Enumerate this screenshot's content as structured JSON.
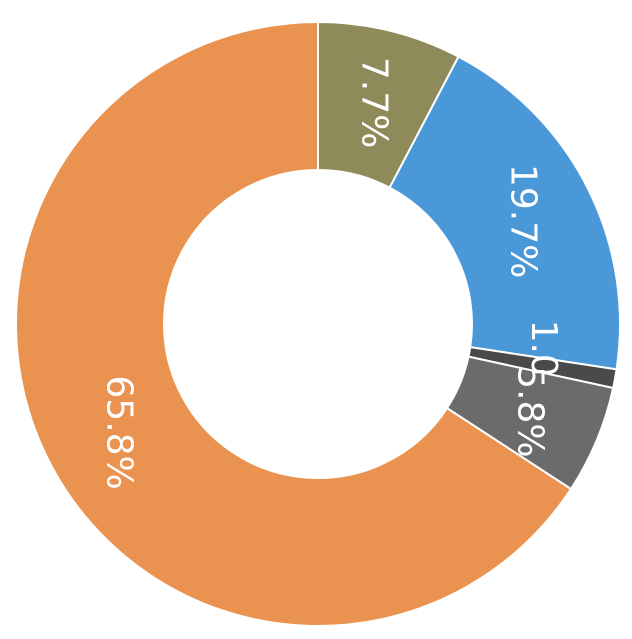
{
  "chart_data": {
    "type": "pie",
    "variant": "donut",
    "start": "top",
    "direction": "clockwise",
    "label_rotation": "clockwise-90",
    "slices": [
      {
        "label": "7.7%",
        "value": 7.7,
        "color": "#8f8a5a"
      },
      {
        "label": "19.7%",
        "value": 19.7,
        "color": "#4a98d8"
      },
      {
        "label": "1.0%",
        "value": 1.0,
        "color": "#4a4a4a"
      },
      {
        "label": "5.8%",
        "value": 5.8,
        "color": "#6b6b6b"
      },
      {
        "label": "65.8%",
        "value": 65.8,
        "color": "#ea9350"
      }
    ]
  }
}
